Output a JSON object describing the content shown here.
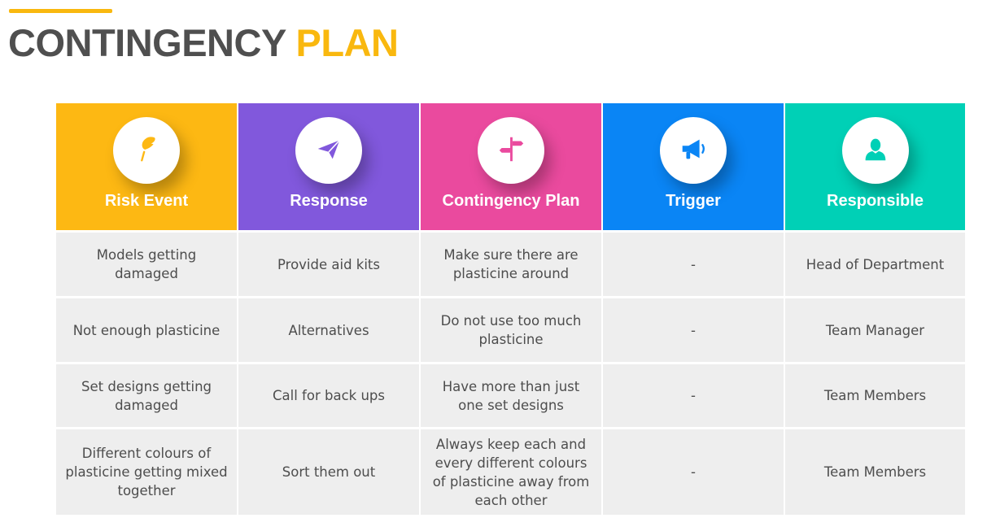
{
  "header": {
    "title_part1": "CONTINGENCY",
    "title_part2": "PLAN"
  },
  "colors": {
    "accent": "#f9b80f",
    "title_gray": "#4f4f4f",
    "row_bg": "#eeeeee",
    "row_text": "#4d4d4d"
  },
  "columns": [
    {
      "label": "Risk Event",
      "icon": "feather-icon",
      "color": "#fdb813"
    },
    {
      "label": "Response",
      "icon": "paper-plane-icon",
      "color": "#8158dc"
    },
    {
      "label": "Contingency Plan",
      "icon": "signpost-icon",
      "color": "#ea4a9e"
    },
    {
      "label": "Trigger",
      "icon": "megaphone-icon",
      "color": "#0a85f5"
    },
    {
      "label": "Responsible",
      "icon": "user-icon",
      "color": "#00d0b6"
    }
  ],
  "rows": [
    [
      "Models getting damaged",
      "Provide aid kits",
      "Make sure there are plasticine around",
      "-",
      "Head of Department"
    ],
    [
      "Not enough plasticine",
      "Alternatives",
      "Do not use too much plasticine",
      "-",
      "Team Manager"
    ],
    [
      "Set designs getting damaged",
      "Call for back ups",
      "Have more than just one set designs",
      "-",
      "Team Members"
    ],
    [
      "Different colours of plasticine getting mixed together",
      "Sort them out",
      "Always keep each and every different colours of plasticine away from each other",
      "-",
      "Team Members"
    ]
  ]
}
